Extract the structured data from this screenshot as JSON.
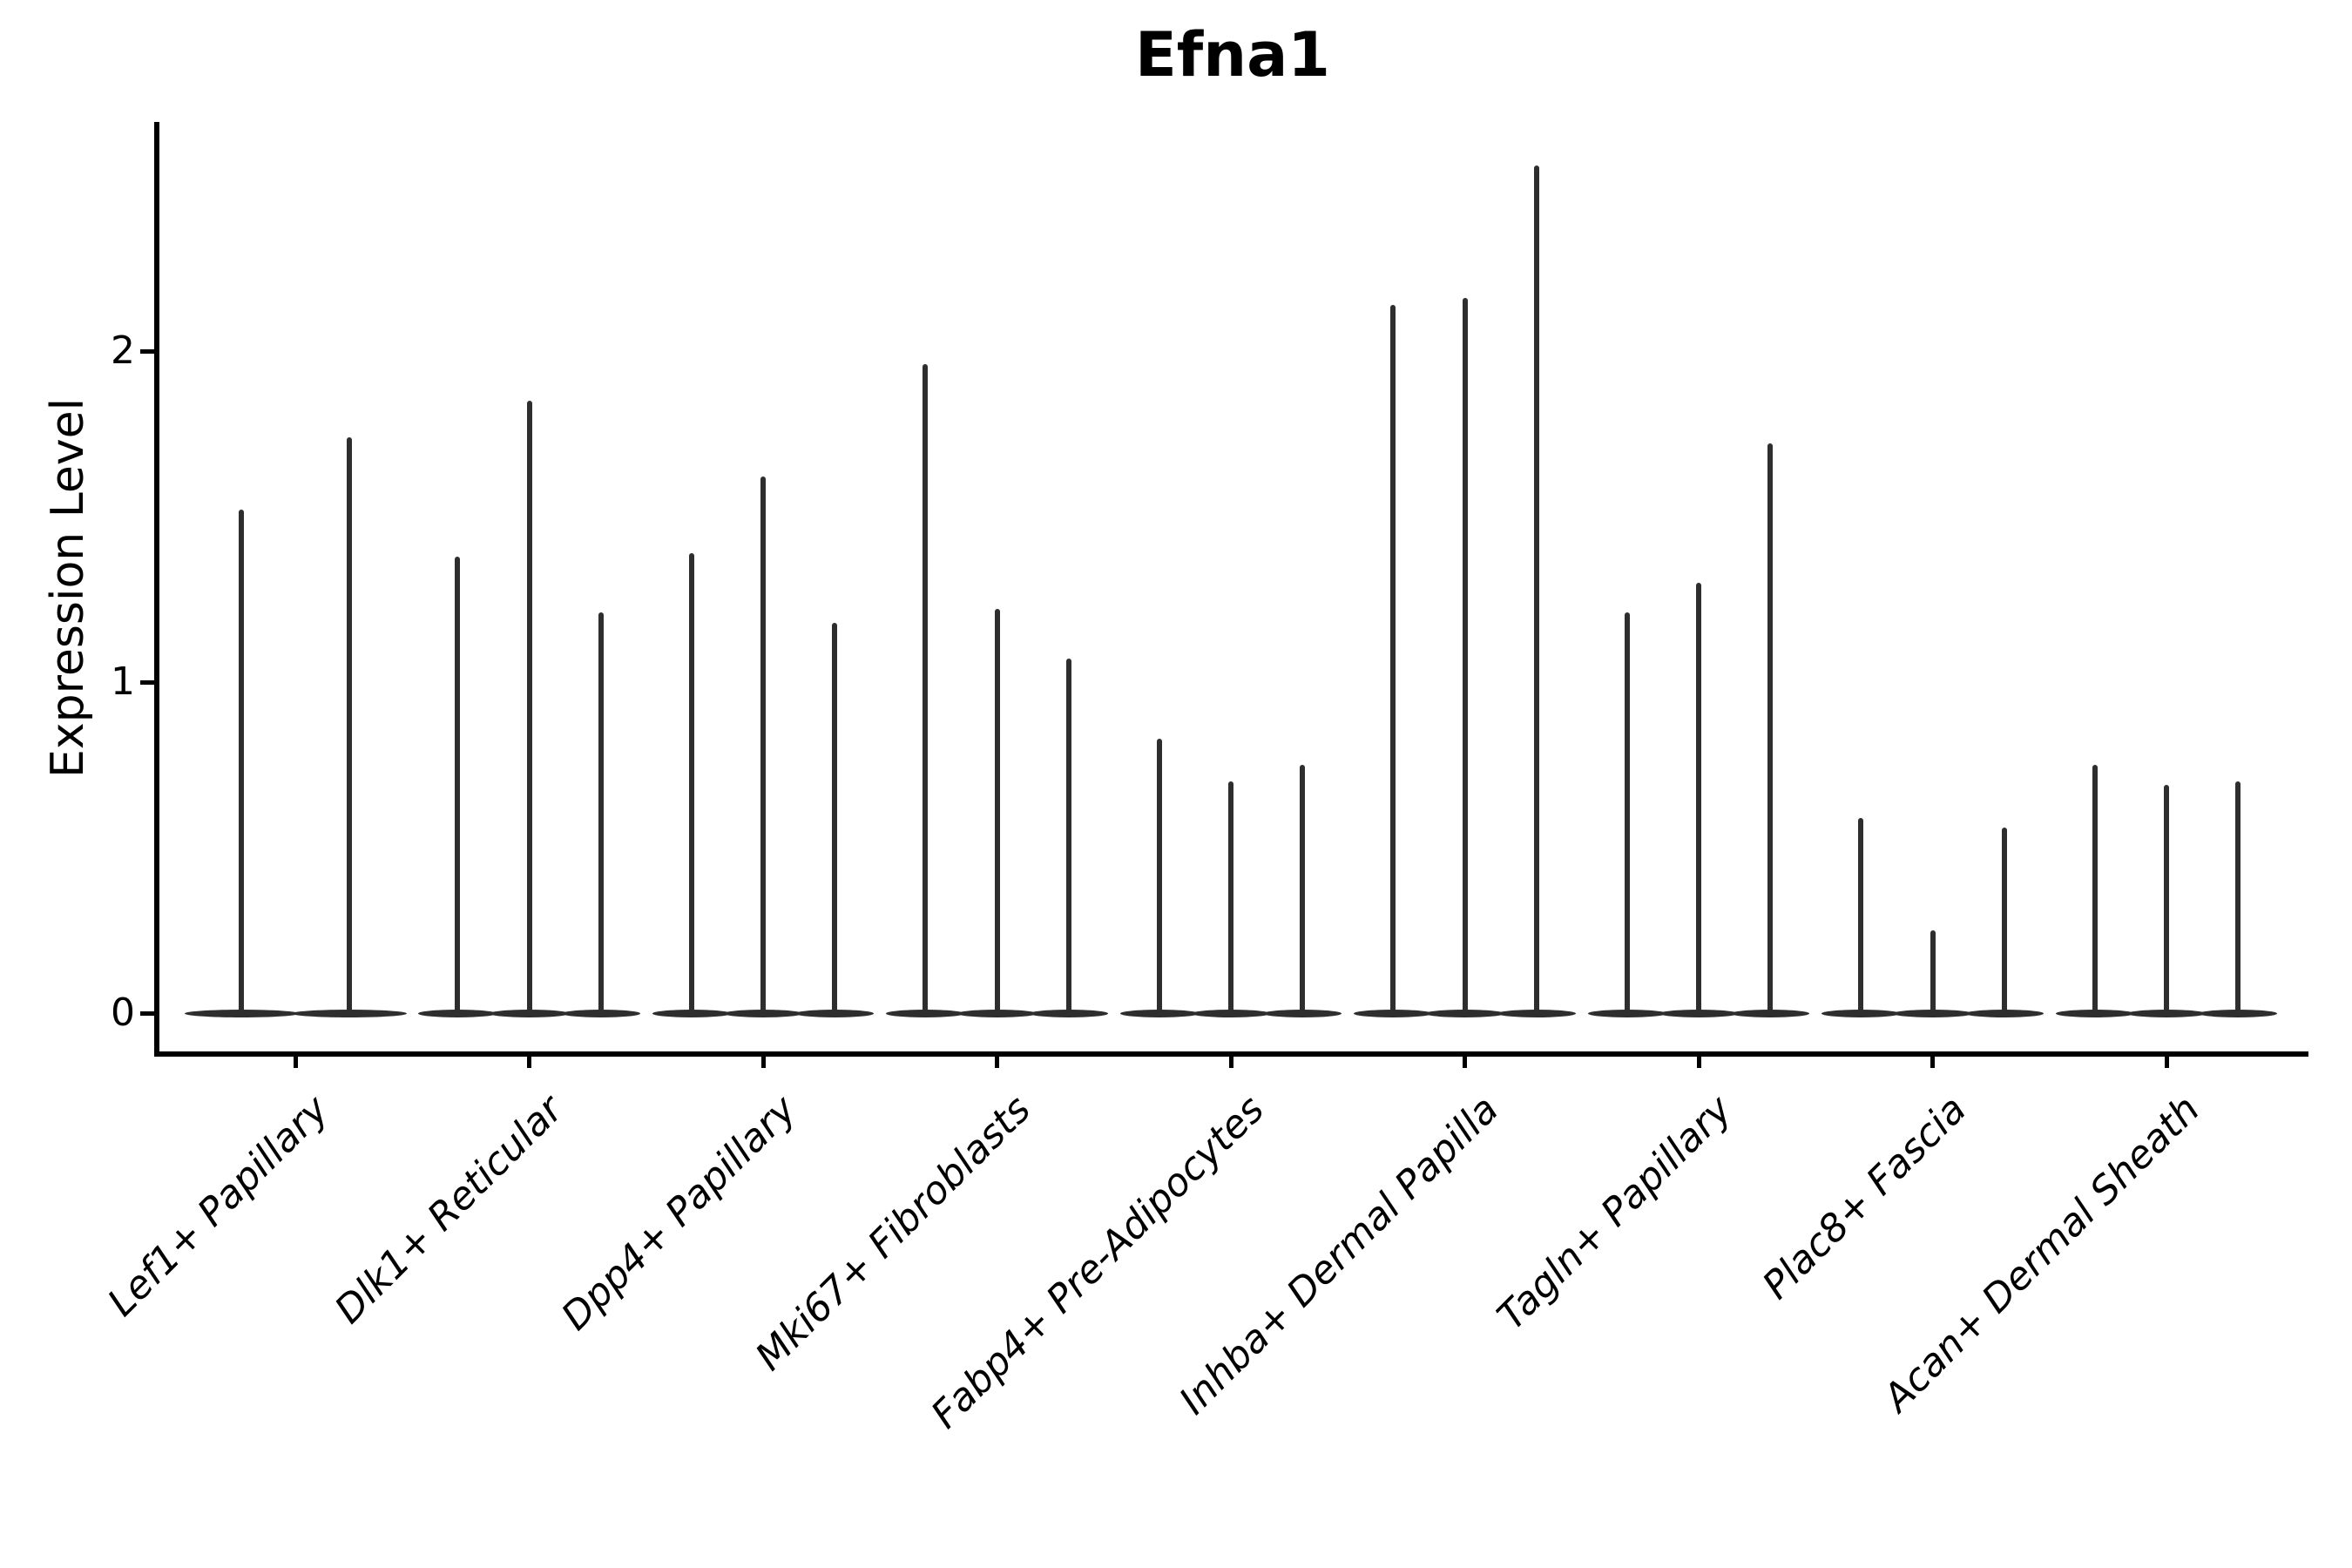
{
  "chart_data": {
    "type": "violin",
    "title": "Efna1",
    "ylabel": "Expression Level",
    "xlabel": "",
    "yticks": [
      0,
      1,
      2
    ],
    "ylim": [
      -0.12,
      2.69
    ],
    "grid": false,
    "legend": "none",
    "violin_color": "#2e2e2e",
    "axis_color": "#000000",
    "violin_shape": "mass collapsed at zero (flat base) with a thin spike up to the max expression value",
    "categories": [
      "Lef1+ Papillary",
      "Dlk1+ Reticular",
      "Dpp4+ Papillary",
      "Mki67+ Fibroblasts",
      "Fabp4+ Pre-Adipocytes",
      "Inhba+ Dermal Papilla",
      "Tagln+ Papillary",
      "Plac8+ Fascia",
      "Acan+ Dermal Sheath"
    ],
    "groups": [
      {
        "category": "Lef1+ Papillary",
        "violin_maxima": [
          1.52,
          1.74
        ]
      },
      {
        "category": "Dlk1+ Reticular",
        "violin_maxima": [
          1.38,
          1.85,
          1.21
        ]
      },
      {
        "category": "Dpp4+ Papillary",
        "violin_maxima": [
          1.39,
          1.62,
          1.18
        ]
      },
      {
        "category": "Mki67+ Fibroblasts",
        "violin_maxima": [
          1.96,
          1.22,
          1.07
        ]
      },
      {
        "category": "Fabp4+ Pre-Adipocytes",
        "violin_maxima": [
          0.83,
          0.7,
          0.75
        ]
      },
      {
        "category": "Inhba+ Dermal Papilla",
        "violin_maxima": [
          2.14,
          2.16,
          2.56
        ]
      },
      {
        "category": "Tagln+ Papillary",
        "violin_maxima": [
          1.21,
          1.3,
          1.72
        ]
      },
      {
        "category": "Plac8+ Fascia",
        "violin_maxima": [
          0.59,
          0.25,
          0.56
        ]
      },
      {
        "category": "Acan+ Dermal Sheath",
        "violin_maxima": [
          0.75,
          0.69,
          0.7
        ]
      }
    ]
  }
}
